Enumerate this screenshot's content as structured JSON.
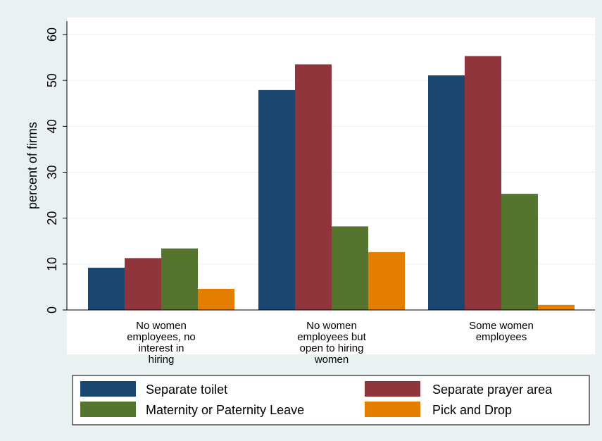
{
  "chart_data": {
    "type": "bar",
    "ylabel": "percent of firms",
    "xlabel": "",
    "ylim": [
      0,
      60
    ],
    "yticks": [
      0,
      10,
      20,
      30,
      40,
      50,
      60
    ],
    "grid": true,
    "legend_position": "bottom",
    "categories": [
      [
        "No women",
        "employees, no",
        "interest in",
        "hiring"
      ],
      [
        "No women",
        "employees but",
        "open to hiring",
        "women"
      ],
      [
        "Some women",
        "employees"
      ]
    ],
    "series": [
      {
        "name": "Separate toilet",
        "color": "#1a476f",
        "values": [
          9.2,
          47.9,
          51.1
        ]
      },
      {
        "name": "Separate prayer area",
        "color": "#90353b",
        "values": [
          11.3,
          53.5,
          55.3
        ]
      },
      {
        "name": "Maternity or Paternity Leave",
        "color": "#55752f",
        "values": [
          13.4,
          18.2,
          25.3
        ]
      },
      {
        "name": "Pick and Drop",
        "color": "#e37e00",
        "values": [
          4.6,
          12.6,
          1.1
        ]
      }
    ]
  }
}
